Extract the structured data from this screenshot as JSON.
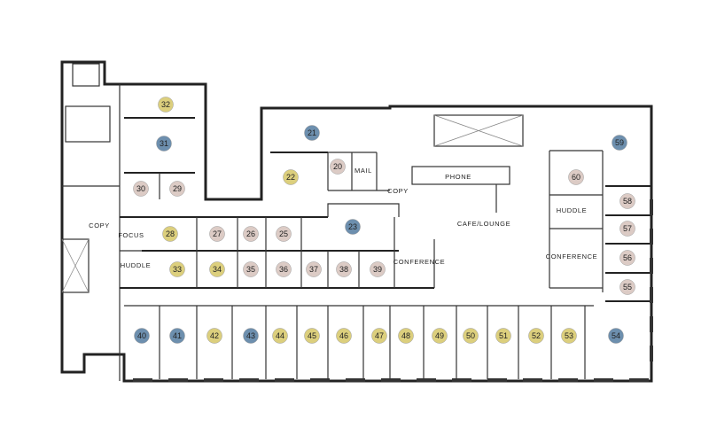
{
  "legend_colors": {
    "blue": "#6d8fae",
    "yellow": "#dccf7d",
    "pink": "#dccbc5"
  },
  "suites": [
    {
      "number": "20",
      "status": "pink"
    },
    {
      "number": "21",
      "status": "blue"
    },
    {
      "number": "22",
      "status": "yellow"
    },
    {
      "number": "23",
      "status": "blue"
    },
    {
      "number": "25",
      "status": "pink"
    },
    {
      "number": "26",
      "status": "pink"
    },
    {
      "number": "27",
      "status": "pink"
    },
    {
      "number": "28",
      "status": "yellow"
    },
    {
      "number": "29",
      "status": "pink"
    },
    {
      "number": "30",
      "status": "pink"
    },
    {
      "number": "31",
      "status": "blue"
    },
    {
      "number": "32",
      "status": "yellow"
    },
    {
      "number": "33",
      "status": "yellow"
    },
    {
      "number": "34",
      "status": "yellow"
    },
    {
      "number": "35",
      "status": "pink"
    },
    {
      "number": "36",
      "status": "pink"
    },
    {
      "number": "37",
      "status": "pink"
    },
    {
      "number": "38",
      "status": "pink"
    },
    {
      "number": "39",
      "status": "pink"
    },
    {
      "number": "40",
      "status": "blue"
    },
    {
      "number": "41",
      "status": "blue"
    },
    {
      "number": "42",
      "status": "yellow"
    },
    {
      "number": "43",
      "status": "blue"
    },
    {
      "number": "44",
      "status": "yellow"
    },
    {
      "number": "45",
      "status": "yellow"
    },
    {
      "number": "46",
      "status": "yellow"
    },
    {
      "number": "47",
      "status": "yellow"
    },
    {
      "number": "48",
      "status": "yellow"
    },
    {
      "number": "49",
      "status": "yellow"
    },
    {
      "number": "50",
      "status": "yellow"
    },
    {
      "number": "51",
      "status": "yellow"
    },
    {
      "number": "52",
      "status": "yellow"
    },
    {
      "number": "53",
      "status": "yellow"
    },
    {
      "number": "54",
      "status": "blue"
    },
    {
      "number": "55",
      "status": "pink"
    },
    {
      "number": "56",
      "status": "pink"
    },
    {
      "number": "57",
      "status": "pink"
    },
    {
      "number": "58",
      "status": "pink"
    },
    {
      "number": "59",
      "status": "blue"
    },
    {
      "number": "60",
      "status": "pink"
    }
  ],
  "room_labels": {
    "focus": "FOCUS",
    "huddle_left": "HUDDLE",
    "copy_left": "COPY",
    "mail": "MAIL",
    "copy_center": "COPY",
    "phone": "PHONE",
    "cafe": "CAFE/LOUNGE",
    "conference_center": "CONFERENCE",
    "huddle_right": "HUDDLE",
    "conference_right": "CONFERENCE"
  }
}
